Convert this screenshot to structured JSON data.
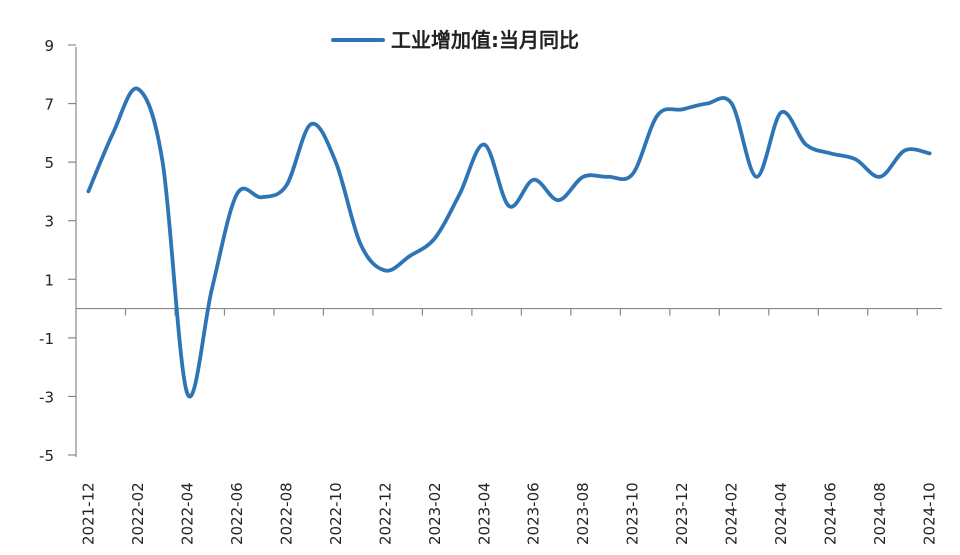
{
  "chart_data": {
    "type": "line",
    "title": "",
    "xlabel": "",
    "ylabel": "",
    "ylim": [
      -5,
      9
    ],
    "yticks": [
      9,
      7,
      5,
      3,
      1,
      -1,
      -3,
      -5
    ],
    "ytick_labels": [
      "9",
      "7",
      "5",
      "3",
      "1",
      "-1",
      "-3",
      "-5"
    ],
    "xtick_labels": [
      "2021-12",
      "2022-02",
      "2022-04",
      "2022-06",
      "2022-08",
      "2022-10",
      "2022-12",
      "2023-02",
      "2023-04",
      "2023-06",
      "2023-08",
      "2023-10",
      "2023-12",
      "2024-02",
      "2024-04",
      "2024-06",
      "2024-08",
      "2024-10"
    ],
    "legend": "top-center",
    "grid": false,
    "series": [
      {
        "name": "工业增加值:当月同比",
        "color": "#2e75b6",
        "x": [
          "2021-12",
          "2022-01",
          "2022-02",
          "2022-03",
          "2022-04",
          "2022-05",
          "2022-06",
          "2022-07",
          "2022-08",
          "2022-09",
          "2022-10",
          "2022-11",
          "2022-12",
          "2023-01",
          "2023-02",
          "2023-03",
          "2023-04",
          "2023-05",
          "2023-06",
          "2023-07",
          "2023-08",
          "2023-09",
          "2023-10",
          "2023-11",
          "2023-12",
          "2024-01",
          "2024-02",
          "2024-03",
          "2024-04",
          "2024-05",
          "2024-06",
          "2024-07",
          "2024-08",
          "2024-09",
          "2024-10"
        ],
        "values": [
          4.0,
          6.0,
          7.5,
          5.0,
          -2.9,
          0.7,
          3.9,
          3.8,
          4.2,
          6.3,
          5.0,
          2.2,
          1.3,
          1.8,
          2.4,
          3.9,
          5.6,
          3.5,
          4.4,
          3.7,
          4.5,
          4.5,
          4.6,
          6.6,
          6.8,
          7.0,
          7.0,
          4.5,
          6.7,
          5.6,
          5.3,
          5.1,
          4.5,
          5.4,
          5.3
        ]
      }
    ]
  }
}
